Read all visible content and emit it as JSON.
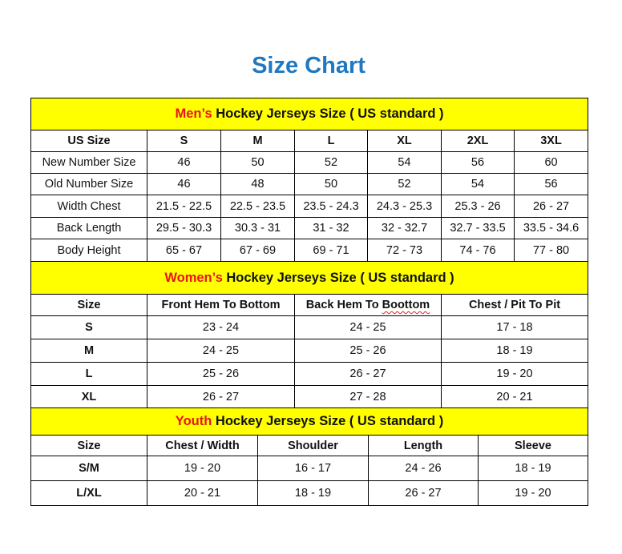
{
  "title": "Size Chart",
  "colors": {
    "title": "#1f78c1",
    "banner_bg": "#ffff00",
    "highlight": "#e8141b"
  },
  "men": {
    "banner_highlight": "Men’s",
    "banner_rest": " Hockey Jerseys Size ( US standard )",
    "headers": [
      "US Size",
      "S",
      "M",
      "L",
      "XL",
      "2XL",
      "3XL"
    ],
    "rows": [
      [
        "New Number Size",
        "46",
        "50",
        "52",
        "54",
        "56",
        "60"
      ],
      [
        "Old Number Size",
        "46",
        "48",
        "50",
        "52",
        "54",
        "56"
      ],
      [
        "Width Chest",
        "21.5 - 22.5",
        "22.5 - 23.5",
        "23.5 - 24.3",
        "24.3 - 25.3",
        "25.3 - 26",
        "26 - 27"
      ],
      [
        "Back Length",
        "29.5 - 30.3",
        "30.3 - 31",
        "31 - 32",
        "32 - 32.7",
        "32.7 - 33.5",
        "33.5 - 34.6"
      ],
      [
        "Body Height",
        "65 - 67",
        "67 - 69",
        "69 - 71",
        "72 - 73",
        "74 - 76",
        "77 - 80"
      ]
    ]
  },
  "women": {
    "banner_highlight": "Women’s",
    "banner_rest": " Hockey Jerseys Size ( US standard )",
    "headers": [
      "Size",
      "Front Hem To Bottom",
      "Back Hem To Boottom",
      "Chest / Pit To Pit"
    ],
    "rows": [
      [
        "S",
        "23 - 24",
        "24 - 25",
        "17 - 18"
      ],
      [
        "M",
        "24 - 25",
        "25 - 26",
        "18 - 19"
      ],
      [
        "L",
        "25 - 26",
        "26 - 27",
        "19 - 20"
      ],
      [
        "XL",
        "26 - 27",
        "27 - 28",
        "20 - 21"
      ]
    ]
  },
  "youth": {
    "banner_highlight": "Youth",
    "banner_rest": " Hockey Jerseys Size ( US standard )",
    "headers": [
      "Size",
      "Chest / Width",
      "Shoulder",
      "Length",
      "Sleeve"
    ],
    "rows": [
      [
        "S/M",
        "19 - 20",
        "16 - 17",
        "24 - 26",
        "18 - 19"
      ],
      [
        "L/XL",
        "20 - 21",
        "18 - 19",
        "26 - 27",
        "19 - 20"
      ]
    ]
  }
}
